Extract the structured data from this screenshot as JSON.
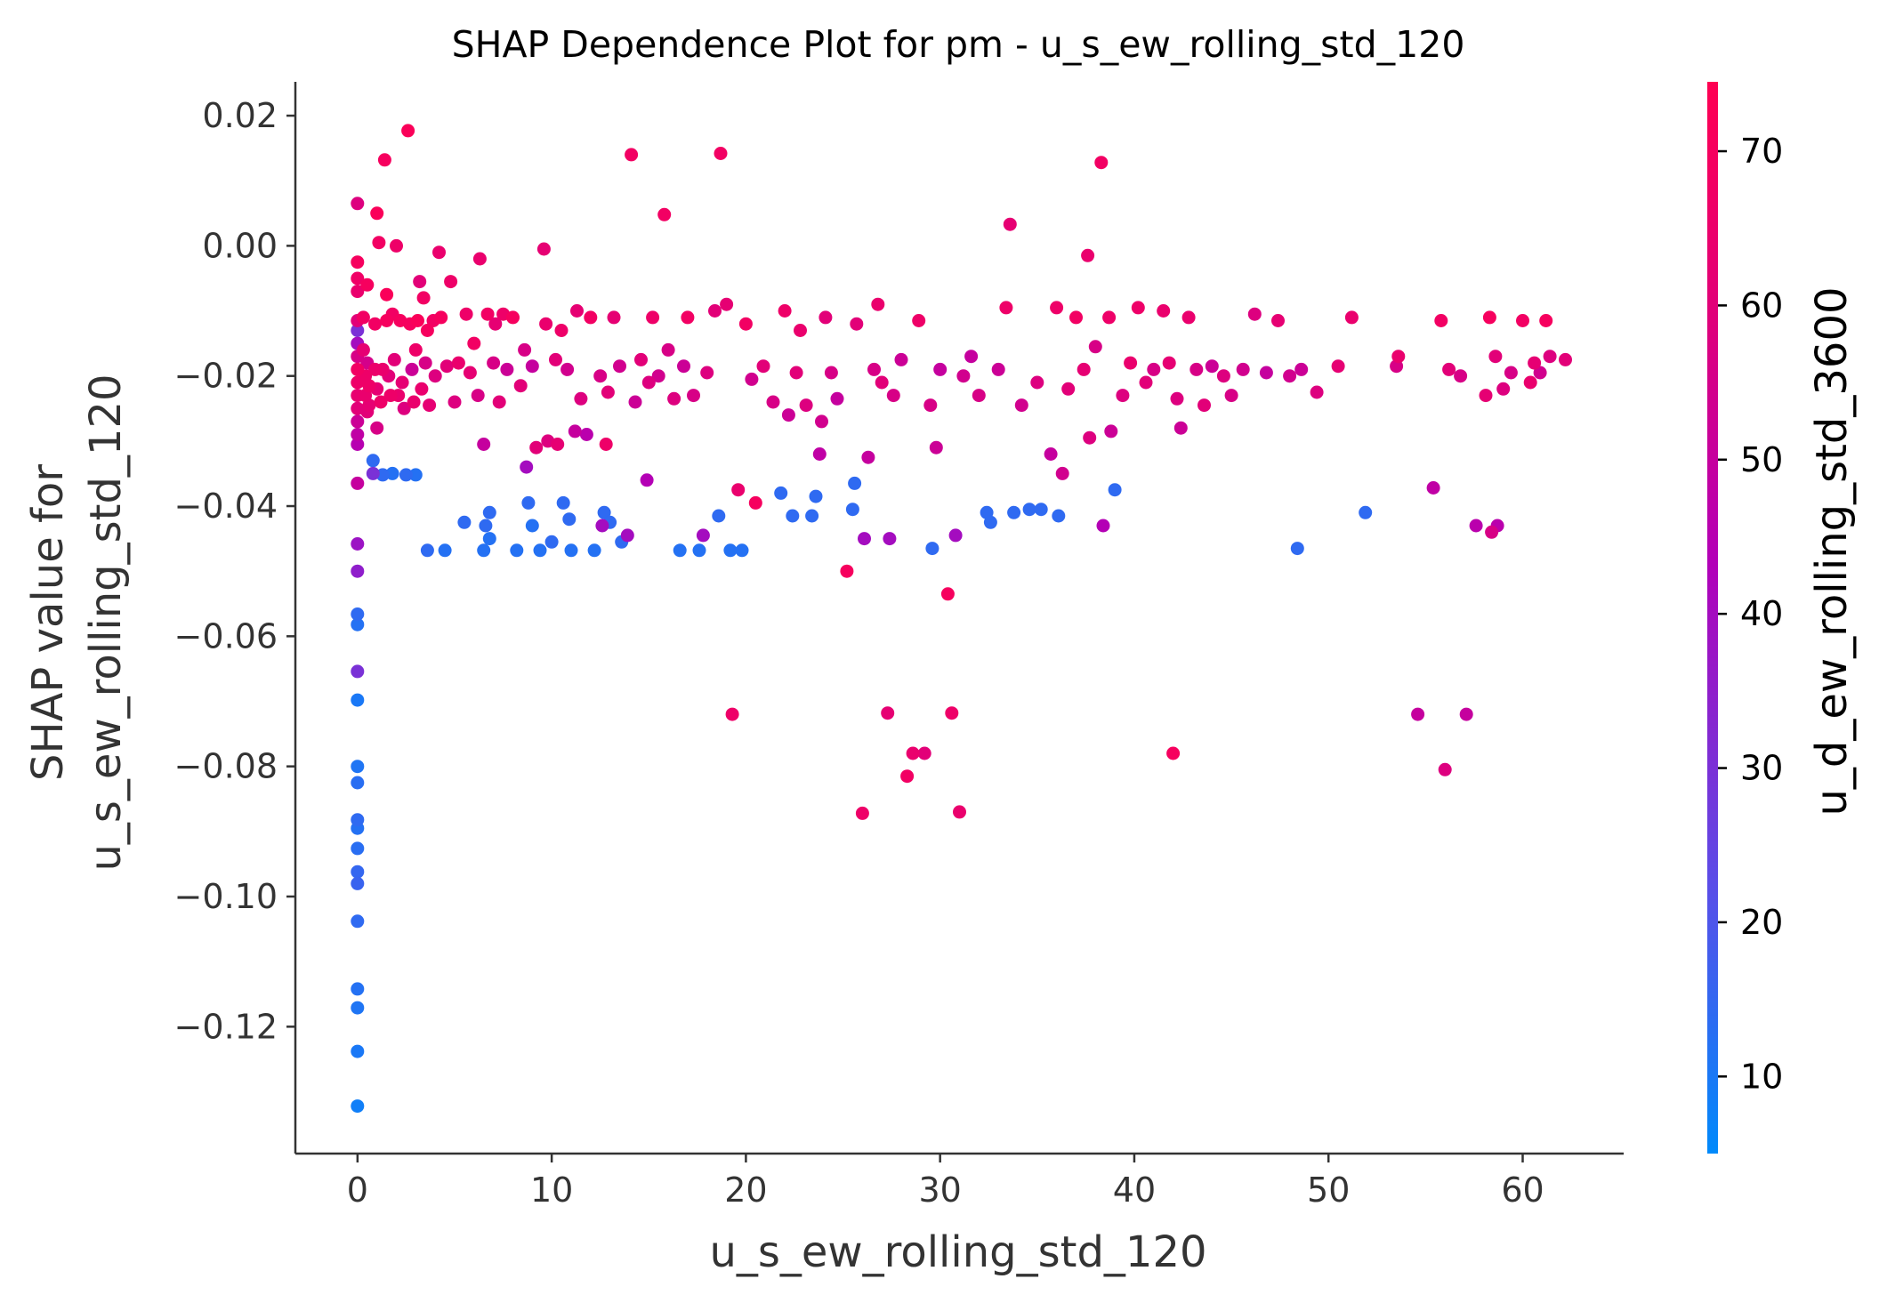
{
  "chart_data": {
    "type": "scatter",
    "title": "SHAP Dependence Plot for pm - u_s_ew_rolling_std_120",
    "xlabel": "u_s_ew_rolling_std_120",
    "ylabel_lines": [
      "SHAP value for",
      "u_s_ew_rolling_std_120"
    ],
    "xlim": [
      -3.2,
      65.2
    ],
    "ylim": [
      -0.1395,
      0.0252
    ],
    "x_ticks": [
      0,
      10,
      20,
      30,
      40,
      50,
      60
    ],
    "x_tick_labels": [
      "0",
      "10",
      "20",
      "30",
      "40",
      "50",
      "60"
    ],
    "y_ticks": [
      0.02,
      0.0,
      -0.02,
      -0.04,
      -0.06,
      -0.08,
      -0.1,
      -0.12
    ],
    "y_tick_labels": [
      "0.02",
      "0.00",
      "−0.02",
      "−0.04",
      "−0.06",
      "−0.08",
      "−0.10",
      "−0.12"
    ],
    "grid": false,
    "colorbar": {
      "label": "u_d_ew_rolling_std_3600",
      "range": [
        5,
        74.5
      ],
      "ticks": [
        10,
        20,
        30,
        40,
        50,
        60,
        70
      ],
      "tick_labels": [
        "10",
        "20",
        "30",
        "40",
        "50",
        "60",
        "70"
      ],
      "cmap": [
        "#008afb",
        "#5a4de8",
        "#b200b8",
        "#e0007a",
        "#ff0052"
      ]
    },
    "points": [
      [
        0,
        -0.1322,
        8
      ],
      [
        0,
        -0.1238,
        10
      ],
      [
        0,
        -0.1171,
        11
      ],
      [
        0,
        -0.1142,
        12
      ],
      [
        0,
        -0.1038,
        14
      ],
      [
        0,
        -0.098,
        16
      ],
      [
        0,
        -0.0962,
        15
      ],
      [
        0,
        -0.0926,
        13
      ],
      [
        0,
        -0.0895,
        12
      ],
      [
        0,
        -0.0882,
        14
      ],
      [
        0,
        -0.0825,
        13
      ],
      [
        0,
        -0.08,
        11
      ],
      [
        0,
        -0.0698,
        10
      ],
      [
        0,
        -0.0654,
        30
      ],
      [
        0,
        -0.0582,
        12
      ],
      [
        0,
        -0.0566,
        14
      ],
      [
        0,
        -0.05,
        35
      ],
      [
        0,
        -0.0458,
        38
      ],
      [
        0,
        -0.0365,
        50
      ],
      [
        0,
        -0.0305,
        45
      ],
      [
        0,
        -0.029,
        48
      ],
      [
        0,
        -0.027,
        52
      ],
      [
        0,
        -0.025,
        60
      ],
      [
        0,
        -0.023,
        63
      ],
      [
        0,
        -0.021,
        66
      ],
      [
        0,
        -0.019,
        68
      ],
      [
        0,
        -0.017,
        56
      ],
      [
        0,
        -0.015,
        40
      ],
      [
        0,
        -0.013,
        30
      ],
      [
        0,
        -0.0115,
        60
      ],
      [
        0,
        -0.007,
        64
      ],
      [
        0,
        -0.005,
        67
      ],
      [
        0,
        -0.0025,
        70
      ],
      [
        0,
        0.0065,
        58
      ],
      [
        0.3,
        -0.011,
        68
      ],
      [
        0.3,
        -0.016,
        62
      ],
      [
        0.4,
        -0.02,
        66
      ],
      [
        0.4,
        -0.023,
        64
      ],
      [
        0.5,
        -0.0255,
        60
      ],
      [
        0.5,
        -0.018,
        55
      ],
      [
        0.5,
        -0.006,
        70
      ],
      [
        0.6,
        -0.0215,
        66
      ],
      [
        0.6,
        -0.0245,
        62
      ],
      [
        0.8,
        -0.033,
        14
      ],
      [
        0.8,
        -0.035,
        30
      ],
      [
        0.9,
        -0.012,
        68
      ],
      [
        0.9,
        -0.019,
        65
      ],
      [
        1.0,
        -0.022,
        62
      ],
      [
        1.0,
        -0.028,
        56
      ],
      [
        1.0,
        0.005,
        72
      ],
      [
        1.1,
        0.0005,
        68
      ],
      [
        1.2,
        -0.024,
        66
      ],
      [
        1.3,
        -0.019,
        64
      ],
      [
        1.3,
        -0.0352,
        14
      ],
      [
        1.4,
        0.0132,
        70
      ],
      [
        1.5,
        -0.0115,
        70
      ],
      [
        1.5,
        -0.0075,
        72
      ],
      [
        1.6,
        -0.02,
        60
      ],
      [
        1.7,
        -0.023,
        66
      ],
      [
        1.8,
        -0.035,
        12
      ],
      [
        1.8,
        -0.0105,
        68
      ],
      [
        1.9,
        -0.0175,
        60
      ],
      [
        2.0,
        0.0,
        66
      ],
      [
        2.1,
        -0.023,
        64
      ],
      [
        2.2,
        -0.0115,
        70
      ],
      [
        2.3,
        -0.021,
        62
      ],
      [
        2.4,
        -0.025,
        58
      ],
      [
        2.5,
        -0.0352,
        14
      ],
      [
        2.6,
        0.0177,
        72
      ],
      [
        2.7,
        -0.012,
        70
      ],
      [
        2.8,
        -0.019,
        52
      ],
      [
        2.9,
        -0.024,
        64
      ],
      [
        3.0,
        -0.0352,
        12
      ],
      [
        3.0,
        -0.016,
        66
      ],
      [
        3.1,
        -0.0115,
        72
      ],
      [
        3.2,
        -0.0055,
        60
      ],
      [
        3.3,
        -0.022,
        64
      ],
      [
        3.4,
        -0.008,
        68
      ],
      [
        3.5,
        -0.018,
        56
      ],
      [
        3.6,
        -0.013,
        70
      ],
      [
        3.6,
        -0.0468,
        14
      ],
      [
        3.7,
        -0.0245,
        62
      ],
      [
        3.9,
        -0.0115,
        68
      ],
      [
        4.0,
        -0.02,
        58
      ],
      [
        4.2,
        -0.001,
        64
      ],
      [
        4.3,
        -0.011,
        70
      ],
      [
        4.5,
        -0.0468,
        12
      ],
      [
        4.6,
        -0.0185,
        60
      ],
      [
        4.8,
        -0.0055,
        66
      ],
      [
        5.0,
        -0.024,
        58
      ],
      [
        5.2,
        -0.018,
        64
      ],
      [
        5.5,
        -0.0425,
        14
      ],
      [
        5.6,
        -0.0105,
        66
      ],
      [
        5.8,
        -0.0195,
        62
      ],
      [
        6.0,
        -0.015,
        68
      ],
      [
        6.2,
        -0.023,
        56
      ],
      [
        6.3,
        -0.002,
        64
      ],
      [
        6.5,
        -0.0305,
        50
      ],
      [
        6.5,
        -0.0468,
        12
      ],
      [
        6.6,
        -0.043,
        14
      ],
      [
        6.7,
        -0.0105,
        68
      ],
      [
        6.8,
        -0.041,
        14
      ],
      [
        6.8,
        -0.045,
        12
      ],
      [
        7.0,
        -0.018,
        56
      ],
      [
        7.1,
        -0.012,
        62
      ],
      [
        7.3,
        -0.024,
        60
      ],
      [
        7.5,
        -0.0105,
        66
      ],
      [
        7.7,
        -0.019,
        52
      ],
      [
        8.0,
        -0.011,
        70
      ],
      [
        8.2,
        -0.0468,
        12
      ],
      [
        8.4,
        -0.0215,
        60
      ],
      [
        8.6,
        -0.016,
        56
      ],
      [
        8.7,
        -0.034,
        40
      ],
      [
        8.8,
        -0.0395,
        14
      ],
      [
        9.0,
        -0.0185,
        50
      ],
      [
        9.0,
        -0.043,
        12
      ],
      [
        9.2,
        -0.031,
        60
      ],
      [
        9.4,
        -0.0468,
        12
      ],
      [
        9.6,
        -0.0005,
        62
      ],
      [
        9.7,
        -0.012,
        64
      ],
      [
        9.8,
        -0.03,
        58
      ],
      [
        10.0,
        -0.0455,
        14
      ],
      [
        10.2,
        -0.0175,
        60
      ],
      [
        10.3,
        -0.0305,
        62
      ],
      [
        10.5,
        -0.013,
        66
      ],
      [
        10.6,
        -0.0395,
        14
      ],
      [
        10.8,
        -0.019,
        54
      ],
      [
        10.9,
        -0.042,
        14
      ],
      [
        11.0,
        -0.0468,
        12
      ],
      [
        11.2,
        -0.0285,
        50
      ],
      [
        11.3,
        -0.01,
        62
      ],
      [
        11.5,
        -0.0235,
        58
      ],
      [
        11.8,
        -0.029,
        46
      ],
      [
        12.0,
        -0.011,
        68
      ],
      [
        12.2,
        -0.0468,
        12
      ],
      [
        12.5,
        -0.02,
        56
      ],
      [
        12.6,
        -0.043,
        40
      ],
      [
        12.7,
        -0.041,
        14
      ],
      [
        12.8,
        -0.0305,
        66
      ],
      [
        12.9,
        -0.0225,
        60
      ],
      [
        13.0,
        -0.0425,
        14
      ],
      [
        13.2,
        -0.011,
        62
      ],
      [
        13.5,
        -0.0185,
        54
      ],
      [
        13.6,
        -0.0455,
        14
      ],
      [
        13.9,
        -0.0445,
        40
      ],
      [
        14.1,
        0.014,
        68
      ],
      [
        14.3,
        -0.024,
        52
      ],
      [
        14.6,
        -0.0175,
        60
      ],
      [
        14.9,
        -0.036,
        44
      ],
      [
        15.0,
        -0.021,
        58
      ],
      [
        15.2,
        -0.011,
        66
      ],
      [
        15.5,
        -0.02,
        54
      ],
      [
        15.8,
        0.0048,
        68
      ],
      [
        16.0,
        -0.016,
        56
      ],
      [
        16.3,
        -0.0235,
        58
      ],
      [
        16.6,
        -0.0468,
        12
      ],
      [
        16.8,
        -0.0185,
        52
      ],
      [
        17.0,
        -0.011,
        68
      ],
      [
        17.3,
        -0.023,
        56
      ],
      [
        17.6,
        -0.0468,
        12
      ],
      [
        17.8,
        -0.0445,
        40
      ],
      [
        18.0,
        -0.0195,
        58
      ],
      [
        18.4,
        -0.01,
        60
      ],
      [
        18.6,
        -0.0415,
        14
      ],
      [
        18.7,
        0.0142,
        68
      ],
      [
        19.0,
        -0.009,
        62
      ],
      [
        19.2,
        -0.0468,
        12
      ],
      [
        19.3,
        -0.072,
        66
      ],
      [
        19.6,
        -0.0375,
        64
      ],
      [
        19.8,
        -0.0468,
        12
      ],
      [
        20.0,
        -0.012,
        68
      ],
      [
        20.3,
        -0.0205,
        54
      ],
      [
        20.5,
        -0.0395,
        70
      ],
      [
        20.9,
        -0.0185,
        60
      ],
      [
        21.4,
        -0.024,
        56
      ],
      [
        21.8,
        -0.038,
        14
      ],
      [
        22.0,
        -0.01,
        66
      ],
      [
        22.2,
        -0.026,
        52
      ],
      [
        22.4,
        -0.0415,
        14
      ],
      [
        22.6,
        -0.0195,
        60
      ],
      [
        22.8,
        -0.013,
        64
      ],
      [
        23.1,
        -0.0245,
        58
      ],
      [
        23.4,
        -0.0415,
        14
      ],
      [
        23.6,
        -0.0385,
        14
      ],
      [
        23.8,
        -0.032,
        48
      ],
      [
        23.9,
        -0.027,
        54
      ],
      [
        24.1,
        -0.011,
        60
      ],
      [
        24.4,
        -0.0195,
        56
      ],
      [
        24.7,
        -0.0235,
        50
      ],
      [
        25.2,
        -0.05,
        70
      ],
      [
        25.5,
        -0.0405,
        14
      ],
      [
        25.6,
        -0.0365,
        14
      ],
      [
        25.7,
        -0.012,
        60
      ],
      [
        26.0,
        -0.0872,
        66
      ],
      [
        26.1,
        -0.045,
        40
      ],
      [
        26.3,
        -0.0325,
        50
      ],
      [
        26.6,
        -0.019,
        56
      ],
      [
        26.8,
        -0.009,
        64
      ],
      [
        27.0,
        -0.021,
        60
      ],
      [
        27.3,
        -0.0718,
        62
      ],
      [
        27.4,
        -0.045,
        40
      ],
      [
        27.6,
        -0.023,
        56
      ],
      [
        28.0,
        -0.0175,
        52
      ],
      [
        28.3,
        -0.0815,
        68
      ],
      [
        28.6,
        -0.078,
        64
      ],
      [
        28.9,
        -0.0115,
        66
      ],
      [
        29.2,
        -0.078,
        60
      ],
      [
        29.5,
        -0.0245,
        56
      ],
      [
        29.6,
        -0.0465,
        14
      ],
      [
        29.8,
        -0.031,
        52
      ],
      [
        30.0,
        -0.019,
        50
      ],
      [
        30.4,
        -0.0535,
        70
      ],
      [
        30.6,
        -0.0718,
        66
      ],
      [
        30.8,
        -0.0445,
        40
      ],
      [
        31.0,
        -0.087,
        64
      ],
      [
        31.2,
        -0.02,
        54
      ],
      [
        31.6,
        -0.017,
        50
      ],
      [
        32.0,
        -0.023,
        56
      ],
      [
        32.4,
        -0.041,
        14
      ],
      [
        32.6,
        -0.0425,
        14
      ],
      [
        33.0,
        -0.019,
        52
      ],
      [
        33.4,
        -0.0095,
        66
      ],
      [
        33.6,
        0.0033,
        62
      ],
      [
        33.8,
        -0.041,
        14
      ],
      [
        34.2,
        -0.0245,
        54
      ],
      [
        34.6,
        -0.0405,
        14
      ],
      [
        35.0,
        -0.021,
        58
      ],
      [
        35.2,
        -0.0405,
        14
      ],
      [
        35.7,
        -0.032,
        50
      ],
      [
        36.0,
        -0.0095,
        66
      ],
      [
        36.1,
        -0.0415,
        14
      ],
      [
        36.3,
        -0.035,
        54
      ],
      [
        36.6,
        -0.022,
        60
      ],
      [
        37.0,
        -0.011,
        68
      ],
      [
        37.4,
        -0.019,
        62
      ],
      [
        37.6,
        -0.0015,
        64
      ],
      [
        37.7,
        -0.0295,
        58
      ],
      [
        38.0,
        -0.0155,
        56
      ],
      [
        38.3,
        0.0128,
        68
      ],
      [
        38.4,
        -0.043,
        44
      ],
      [
        38.7,
        -0.011,
        66
      ],
      [
        38.8,
        -0.0285,
        52
      ],
      [
        39.0,
        -0.0375,
        14
      ],
      [
        39.4,
        -0.023,
        58
      ],
      [
        39.8,
        -0.018,
        64
      ],
      [
        40.2,
        -0.0095,
        66
      ],
      [
        40.6,
        -0.021,
        60
      ],
      [
        41.0,
        -0.019,
        56
      ],
      [
        41.5,
        -0.01,
        64
      ],
      [
        41.8,
        -0.018,
        62
      ],
      [
        42.0,
        -0.078,
        70
      ],
      [
        42.2,
        -0.0235,
        58
      ],
      [
        42.4,
        -0.028,
        52
      ],
      [
        42.8,
        -0.011,
        64
      ],
      [
        43.2,
        -0.019,
        56
      ],
      [
        43.6,
        -0.0245,
        60
      ],
      [
        44.0,
        -0.0185,
        52
      ],
      [
        44.6,
        -0.02,
        58
      ],
      [
        45.0,
        -0.023,
        56
      ],
      [
        45.6,
        -0.019,
        54
      ],
      [
        46.2,
        -0.0105,
        58
      ],
      [
        46.8,
        -0.0195,
        50
      ],
      [
        47.4,
        -0.0115,
        62
      ],
      [
        48.0,
        -0.02,
        54
      ],
      [
        48.4,
        -0.0465,
        14
      ],
      [
        48.6,
        -0.019,
        52
      ],
      [
        49.4,
        -0.0225,
        58
      ],
      [
        50.5,
        -0.0185,
        62
      ],
      [
        51.2,
        -0.011,
        64
      ],
      [
        51.9,
        -0.041,
        14
      ],
      [
        53.5,
        -0.0185,
        56
      ],
      [
        53.6,
        -0.017,
        64
      ],
      [
        54.6,
        -0.072,
        50
      ],
      [
        55.4,
        -0.0372,
        48
      ],
      [
        55.8,
        -0.0115,
        68
      ],
      [
        56.0,
        -0.0805,
        58
      ],
      [
        56.2,
        -0.019,
        60
      ],
      [
        56.8,
        -0.02,
        56
      ],
      [
        57.1,
        -0.072,
        50
      ],
      [
        57.6,
        -0.043,
        46
      ],
      [
        58.1,
        -0.023,
        62
      ],
      [
        58.3,
        -0.011,
        70
      ],
      [
        58.4,
        -0.044,
        56
      ],
      [
        58.6,
        -0.017,
        60
      ],
      [
        58.7,
        -0.043,
        46
      ],
      [
        59.0,
        -0.022,
        58
      ],
      [
        59.4,
        -0.0195,
        56
      ],
      [
        60.0,
        -0.0115,
        68
      ],
      [
        60.4,
        -0.021,
        64
      ],
      [
        60.6,
        -0.018,
        62
      ],
      [
        60.9,
        -0.0195,
        54
      ],
      [
        61.2,
        -0.0115,
        70
      ],
      [
        61.4,
        -0.017,
        58
      ],
      [
        62.2,
        -0.0175,
        60
      ]
    ]
  }
}
